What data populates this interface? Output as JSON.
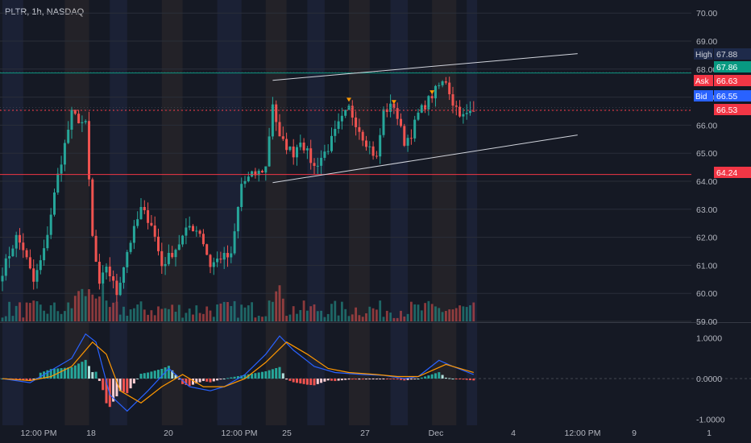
{
  "ticker": "PLTR, 1h, NASDAQ",
  "colors": {
    "background": "#151924",
    "up": "#26a69a",
    "down": "#ef5350",
    "macd_line": "#2962ff",
    "signal_line": "#ff9800",
    "resistance": "#089981",
    "support": "#f23645",
    "current": "#f23645",
    "channel": "#d1d4dc",
    "marker": "#ff9800"
  },
  "chart_data": [
    {
      "type": "candlestick",
      "y_axis_ticks": [
        "70.00",
        "69.00",
        "68.00",
        "67.00",
        "66.00",
        "65.00",
        "64.00",
        "63.00",
        "62.00",
        "61.00",
        "60.00",
        "59.00"
      ],
      "ylim": [
        58.8,
        70.3
      ],
      "x_axis_labels": [
        "12:00 PM",
        "18",
        "20",
        "12:00 PM",
        "25",
        "27",
        "Dec",
        "4",
        "12:00 PM",
        "9",
        "1"
      ],
      "price_labels": [
        {
          "tag": "High",
          "value": "67.88"
        },
        {
          "tag": "",
          "value": "67.86"
        },
        {
          "tag": "Ask",
          "value": "66.63"
        },
        {
          "tag": "Bid",
          "value": "66.55"
        },
        {
          "tag": "",
          "value": "66.53"
        },
        {
          "tag": "",
          "value": "64.24"
        }
      ],
      "horizontal_lines": [
        {
          "name": "resistance",
          "value": 67.86
        },
        {
          "name": "current",
          "value": 66.53
        },
        {
          "name": "support",
          "value": 64.24
        }
      ],
      "channel": {
        "upper": [
          [
            78,
            67.6
          ],
          [
            166,
            68.55
          ]
        ],
        "lower": [
          [
            78,
            63.95
          ],
          [
            166,
            65.65
          ]
        ]
      },
      "markers_bar_index": [
        100,
        124,
        113
      ],
      "anchors": [
        [
          0,
          60.8
        ],
        [
          4,
          62.0
        ],
        [
          6,
          61.6
        ],
        [
          9,
          60.4
        ],
        [
          12,
          61.5
        ],
        [
          16,
          64.2
        ],
        [
          20,
          66.4
        ],
        [
          24,
          66.0
        ],
        [
          26,
          62.0
        ],
        [
          28,
          60.2
        ],
        [
          30,
          61.0
        ],
        [
          33,
          60.0
        ],
        [
          36,
          61.5
        ],
        [
          40,
          63.0
        ],
        [
          43,
          62.5
        ],
        [
          46,
          61.0
        ],
        [
          50,
          61.6
        ],
        [
          54,
          62.4
        ],
        [
          57,
          62.2
        ],
        [
          60,
          61.0
        ],
        [
          63,
          61.3
        ],
        [
          66,
          61.3
        ],
        [
          69,
          63.9
        ],
        [
          72,
          64.2
        ],
        [
          74,
          64.3
        ],
        [
          76,
          64.5
        ],
        [
          78,
          66.8
        ],
        [
          80,
          65.5
        ],
        [
          84,
          65.0
        ],
        [
          86,
          65.5
        ],
        [
          90,
          64.5
        ],
        [
          94,
          65.2
        ],
        [
          97,
          66.0
        ],
        [
          100,
          66.6
        ],
        [
          104,
          65.6
        ],
        [
          108,
          64.8
        ],
        [
          110,
          66.5
        ],
        [
          113,
          66.7
        ],
        [
          116,
          65.4
        ],
        [
          118,
          65.7
        ],
        [
          120,
          66.4
        ],
        [
          123,
          66.9
        ],
        [
          126,
          67.4
        ],
        [
          128,
          67.6
        ],
        [
          130,
          66.8
        ],
        [
          133,
          66.3
        ],
        [
          136,
          66.5
        ]
      ],
      "total_bars": 137,
      "volume_bars": 137
    },
    {
      "type": "macd",
      "y_axis_ticks": [
        "1.0000",
        "0.0000",
        "-1.0000"
      ],
      "ylim": [
        -1.15,
        1.35
      ],
      "macd": [
        [
          0,
          0.0
        ],
        [
          8,
          -0.1
        ],
        [
          14,
          0.2
        ],
        [
          20,
          0.5
        ],
        [
          24,
          1.1
        ],
        [
          27,
          0.9
        ],
        [
          31,
          -0.4
        ],
        [
          36,
          -0.8
        ],
        [
          42,
          -0.3
        ],
        [
          48,
          0.25
        ],
        [
          54,
          -0.2
        ],
        [
          60,
          -0.3
        ],
        [
          64,
          -0.2
        ],
        [
          70,
          0.1
        ],
        [
          76,
          0.6
        ],
        [
          80,
          1.05
        ],
        [
          84,
          0.7
        ],
        [
          90,
          0.3
        ],
        [
          96,
          0.15
        ],
        [
          104,
          0.1
        ],
        [
          110,
          0.08
        ],
        [
          116,
          0.0
        ],
        [
          120,
          0.05
        ],
        [
          126,
          0.45
        ],
        [
          130,
          0.3
        ],
        [
          136,
          0.1
        ]
      ],
      "signal": [
        [
          0,
          0.0
        ],
        [
          8,
          -0.05
        ],
        [
          14,
          0.05
        ],
        [
          20,
          0.3
        ],
        [
          26,
          0.9
        ],
        [
          30,
          0.6
        ],
        [
          34,
          -0.3
        ],
        [
          40,
          -0.6
        ],
        [
          46,
          -0.2
        ],
        [
          52,
          0.1
        ],
        [
          58,
          -0.2
        ],
        [
          64,
          -0.2
        ],
        [
          70,
          0.0
        ],
        [
          76,
          0.4
        ],
        [
          82,
          0.9
        ],
        [
          88,
          0.6
        ],
        [
          94,
          0.25
        ],
        [
          100,
          0.15
        ],
        [
          108,
          0.1
        ],
        [
          114,
          0.05
        ],
        [
          120,
          0.05
        ],
        [
          128,
          0.35
        ],
        [
          136,
          0.15
        ]
      ]
    }
  ]
}
